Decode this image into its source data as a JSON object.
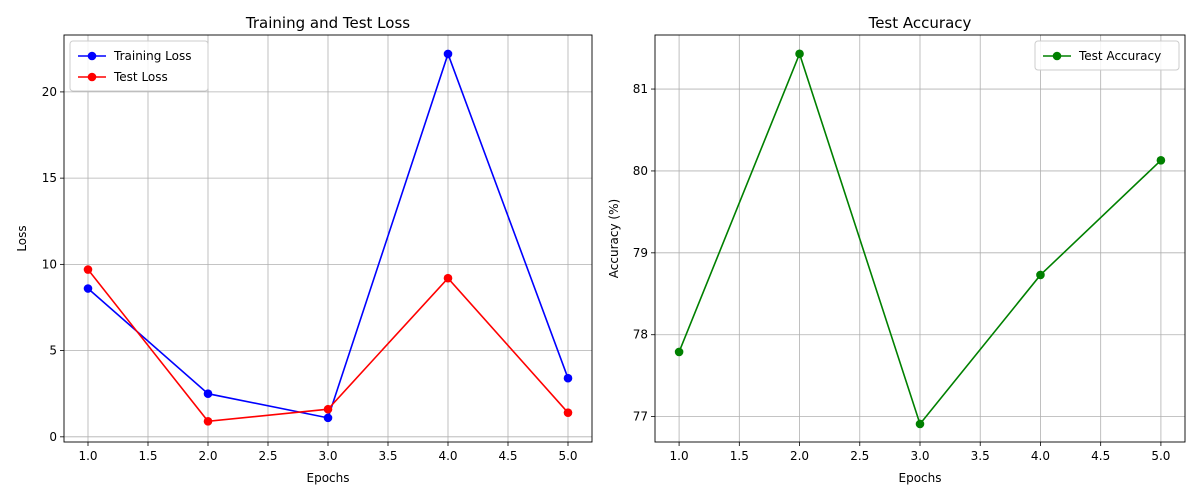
{
  "chart_data": [
    {
      "type": "line",
      "title": "Training and Test Loss",
      "xlabel": "Epochs",
      "ylabel": "Loss",
      "xlim": [
        0.8,
        5.2
      ],
      "ylim": [
        -0.3,
        23.3
      ],
      "xticks": [
        1.0,
        1.5,
        2.0,
        2.5,
        3.0,
        3.5,
        4.0,
        4.5,
        5.0
      ],
      "xtick_labels": [
        "1.0",
        "1.5",
        "2.0",
        "2.5",
        "3.0",
        "3.5",
        "4.0",
        "4.5",
        "5.0"
      ],
      "yticks": [
        0,
        5,
        10,
        15,
        20
      ],
      "ytick_labels": [
        "0",
        "5",
        "10",
        "15",
        "20"
      ],
      "grid": true,
      "legend": "top-left",
      "x": [
        1,
        2,
        3,
        4,
        5
      ],
      "series": [
        {
          "name": "Training Loss",
          "color": "#0000ff",
          "values": [
            8.6,
            2.5,
            1.1,
            22.2,
            3.4
          ]
        },
        {
          "name": "Test Loss",
          "color": "#ff0000",
          "values": [
            9.7,
            0.9,
            1.6,
            9.2,
            1.4
          ]
        }
      ]
    },
    {
      "type": "line",
      "title": "Test Accuracy",
      "xlabel": "Epochs",
      "ylabel": "Accuracy (%)",
      "xlim": [
        0.8,
        5.2
      ],
      "ylim": [
        76.69,
        81.66
      ],
      "xticks": [
        1.0,
        1.5,
        2.0,
        2.5,
        3.0,
        3.5,
        4.0,
        4.5,
        5.0
      ],
      "xtick_labels": [
        "1.0",
        "1.5",
        "2.0",
        "2.5",
        "3.0",
        "3.5",
        "4.0",
        "4.5",
        "5.0"
      ],
      "yticks": [
        77,
        78,
        79,
        80,
        81
      ],
      "ytick_labels": [
        "77",
        "78",
        "79",
        "80",
        "81"
      ],
      "grid": true,
      "legend": "top-right",
      "x": [
        1,
        2,
        3,
        4,
        5
      ],
      "series": [
        {
          "name": "Test Accuracy",
          "color": "#008000",
          "values": [
            77.79,
            81.43,
            76.91,
            78.73,
            80.13
          ]
        }
      ]
    }
  ]
}
